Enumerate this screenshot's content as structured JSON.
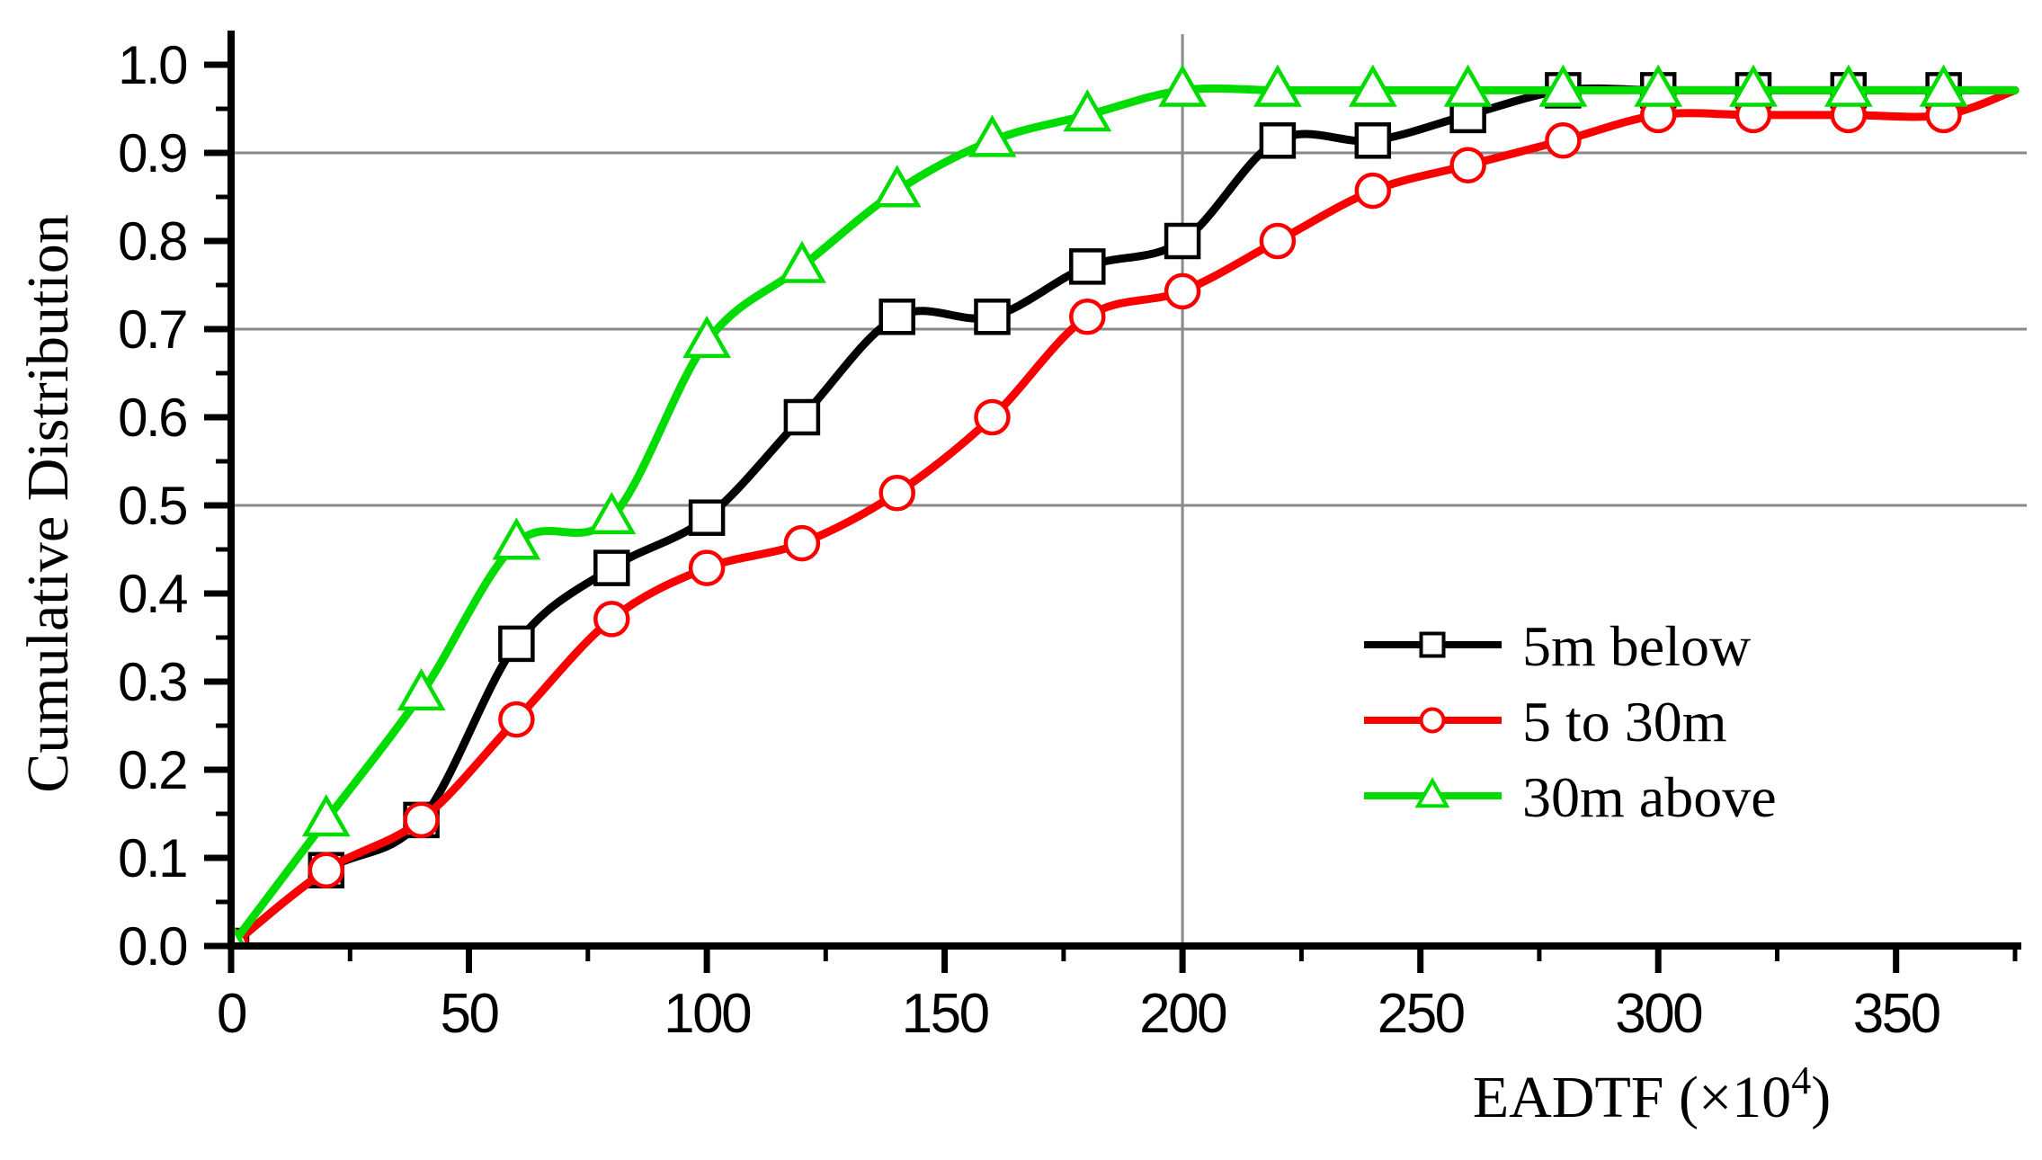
{
  "chart_data": {
    "type": "line",
    "title": "",
    "xlabel": "EADTF (×10⁴)",
    "xlabel_parts": {
      "prefix": "EADTF (×10",
      "superscript": "4",
      "suffix": ")"
    },
    "ylabel": "Cumulative Distribution",
    "xlim": [
      0,
      375
    ],
    "ylim": [
      0.0,
      1.0
    ],
    "x_major_ticks": [
      0,
      50,
      100,
      150,
      200,
      250,
      300,
      350
    ],
    "x_minor_ticks": [
      25,
      75,
      125,
      175,
      225,
      275,
      325,
      375
    ],
    "x_tick_labels": [
      "0",
      "50",
      "100",
      "150",
      "200",
      "250",
      "300",
      "350"
    ],
    "y_major_ticks": [
      0.0,
      0.1,
      0.2,
      0.3,
      0.4,
      0.5,
      0.6,
      0.7,
      0.8,
      0.9,
      1.0
    ],
    "y_minor_ticks": [
      0.05,
      0.15,
      0.25,
      0.35,
      0.45,
      0.55,
      0.65,
      0.75,
      0.85,
      0.95
    ],
    "y_tick_labels": [
      "0.0",
      "0.1",
      "0.2",
      "0.3",
      "0.4",
      "0.5",
      "0.6",
      "0.7",
      "0.8",
      "0.9",
      "1.0"
    ],
    "grid": {
      "horizontal_y": [
        0.5,
        0.7,
        0.9
      ],
      "vertical_x": [
        200
      ]
    },
    "x": [
      0,
      20,
      40,
      60,
      80,
      100,
      120,
      140,
      160,
      180,
      200,
      220,
      240,
      260,
      280,
      300,
      320,
      340,
      360,
      375
    ],
    "marker_x_max": 360,
    "series": [
      {
        "name": "5m below",
        "color": "#000000",
        "marker": "square",
        "values": [
          0,
          0.086,
          0.143,
          0.343,
          0.429,
          0.486,
          0.6,
          0.714,
          0.714,
          0.771,
          0.8,
          0.914,
          0.914,
          0.943,
          0.971,
          0.971,
          0.971,
          0.971,
          0.971,
          0.971
        ]
      },
      {
        "name": "5 to 30m",
        "color": "#fa0000",
        "marker": "circle",
        "values": [
          0,
          0.086,
          0.143,
          0.257,
          0.371,
          0.429,
          0.457,
          0.514,
          0.6,
          0.714,
          0.743,
          0.8,
          0.857,
          0.886,
          0.914,
          0.943,
          0.943,
          0.943,
          0.943,
          0.971
        ]
      },
      {
        "name": "30m above",
        "color": "#00dc00",
        "marker": "triangle",
        "values": [
          0,
          0.143,
          0.286,
          0.457,
          0.486,
          0.686,
          0.771,
          0.857,
          0.914,
          0.943,
          0.971,
          0.971,
          0.971,
          0.971,
          0.971,
          0.971,
          0.971,
          0.971,
          0.971,
          0.971
        ]
      }
    ],
    "legend": {
      "position": "right-middle",
      "items": [
        "5m below",
        "5 to 30m",
        "30m above"
      ]
    },
    "colors": {
      "grid": "#8a8a8a",
      "axis": "#000000",
      "background": "#ffffff"
    }
  }
}
